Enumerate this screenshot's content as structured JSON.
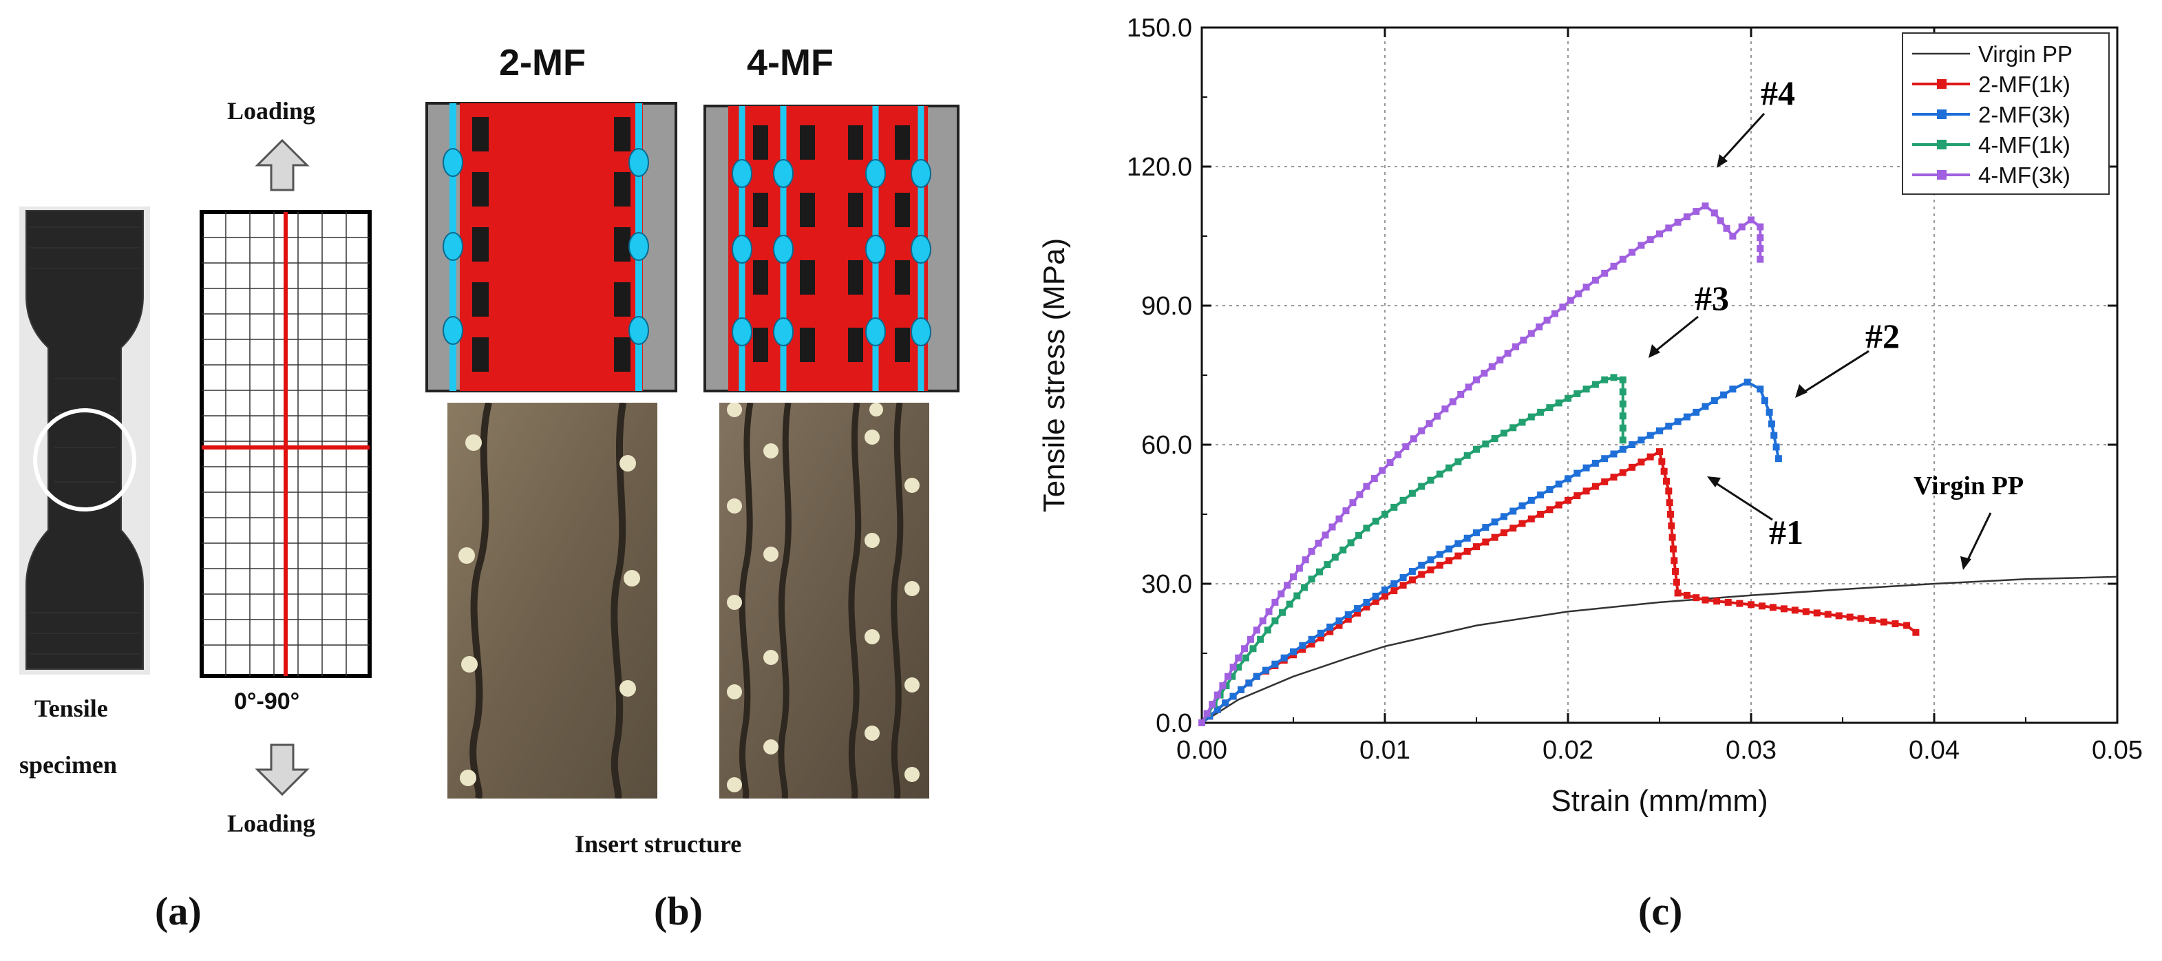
{
  "panel_a": {
    "loading_top": "Loading",
    "loading_bottom": "Loading",
    "specimen_label_1": "Tensile",
    "specimen_label_2": "specimen",
    "orientation": "0°-90°",
    "caption": "(a)",
    "colors": {
      "grid_red": "#e01010",
      "specimen": "#2a2a2a"
    }
  },
  "panel_b": {
    "title_left": "2-MF",
    "title_right": "4-MF",
    "caption_text": "Insert structure",
    "caption": "(b)",
    "colors": {
      "red": "#e01818",
      "cyan": "#1ec8f0",
      "gray": "#9a9a9a",
      "photo": "#7a6a55"
    }
  },
  "panel_c": {
    "caption": "(c)",
    "annotations": {
      "a4": "#4",
      "a3": "#3",
      "a2": "#2",
      "a1": "#1",
      "virgin": "Virgin PP"
    }
  },
  "chart_data": {
    "type": "line",
    "title": "",
    "xlabel": "Strain (mm/mm)",
    "ylabel": "Tensile stress (MPa)",
    "xlim": [
      0,
      0.05
    ],
    "ylim": [
      0,
      150
    ],
    "xticks": [
      "0.00",
      "0.01",
      "0.02",
      "0.03",
      "0.04",
      "0.05"
    ],
    "yticks": [
      "0.0",
      "30.0",
      "60.0",
      "90.0",
      "120.0",
      "150.0"
    ],
    "grid": true,
    "legend_position": "top-right",
    "series": [
      {
        "name": "Virgin PP",
        "color": "#333333",
        "marker": "none",
        "x": [
          0,
          0.002,
          0.005,
          0.008,
          0.01,
          0.015,
          0.02,
          0.025,
          0.03,
          0.035,
          0.04,
          0.045,
          0.05
        ],
        "y": [
          0,
          5,
          10,
          14,
          16.5,
          21,
          24,
          26,
          27.5,
          28.8,
          30,
          31,
          31.5
        ]
      },
      {
        "name": "2-MF(1k)",
        "color": "#e01818",
        "marker": "square",
        "x": [
          0,
          0.003,
          0.006,
          0.009,
          0.012,
          0.015,
          0.018,
          0.021,
          0.023,
          0.025,
          0.0255,
          0.0258,
          0.026,
          0.0275,
          0.03,
          0.033,
          0.036,
          0.0385,
          0.039
        ],
        "y": [
          0,
          10,
          17,
          25,
          32,
          38,
          44,
          50,
          54,
          58.5,
          50,
          35,
          28,
          26.5,
          25.5,
          24,
          22.5,
          21,
          19.5
        ]
      },
      {
        "name": "2-MF(3k)",
        "color": "#1e6fd8",
        "marker": "square",
        "x": [
          0,
          0.003,
          0.006,
          0.009,
          0.012,
          0.015,
          0.018,
          0.021,
          0.024,
          0.027,
          0.029,
          0.0298,
          0.0305,
          0.031,
          0.0315
        ],
        "y": [
          0,
          10,
          18,
          26,
          34,
          41,
          48,
          55,
          61,
          67,
          72,
          73.5,
          72,
          67,
          57
        ]
      },
      {
        "name": "4-MF(1k)",
        "color": "#22a070",
        "marker": "square",
        "x": [
          0,
          0.002,
          0.004,
          0.006,
          0.009,
          0.012,
          0.015,
          0.018,
          0.02,
          0.022,
          0.0225,
          0.023,
          0.023
        ],
        "y": [
          0,
          12,
          22,
          31,
          42,
          51,
          59,
          66,
          70,
          74,
          74.5,
          74,
          61
        ]
      },
      {
        "name": "4-MF(3k)",
        "color": "#a060e0",
        "marker": "square",
        "x": [
          0,
          0.002,
          0.004,
          0.006,
          0.009,
          0.012,
          0.015,
          0.018,
          0.021,
          0.024,
          0.026,
          0.0275,
          0.028,
          0.029,
          0.0295,
          0.03,
          0.0305,
          0.0305
        ],
        "y": [
          0,
          14,
          26,
          37,
          51,
          63,
          74,
          84,
          94,
          103,
          108,
          111.5,
          110,
          105,
          107,
          108.5,
          107,
          100
        ]
      }
    ]
  }
}
